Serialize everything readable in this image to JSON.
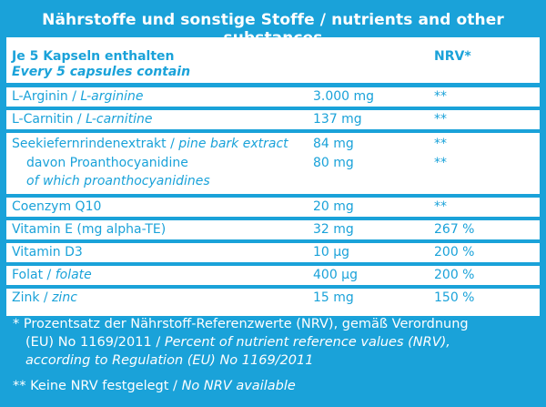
{
  "title": "Nährstoffe und sonstige Stoffe / nutrients and other substances",
  "colors": {
    "accent": "#1aa2d9",
    "panel": "#ffffff"
  },
  "header": {
    "line1": "Je 5 Kapseln enthalten",
    "line2": "Every 5 capsules contain",
    "nrv": "NRV*"
  },
  "rows": [
    {
      "name_de": "L-Arginin / ",
      "name_en": "L-arginine",
      "amount": "3.000 mg",
      "nrv": "**"
    },
    {
      "name_de": "L-Carnitin / ",
      "name_en": "L-carnitine",
      "amount": "137 mg",
      "nrv": "**"
    },
    {
      "name_de": "Seekiefernrindenextrakt / ",
      "name_en": "pine bark extract",
      "amount": "84 mg",
      "nrv": "**",
      "sub_de": "davon Proanthocyanidine",
      "sub_en": "of which proanthocyanidines",
      "sub_amount": "80 mg",
      "sub_nrv": "**"
    },
    {
      "name_de": "Coenzym Q10",
      "name_en": "",
      "amount": "20 mg",
      "nrv": "**"
    },
    {
      "name_de": "Vitamin E (mg alpha-TE)",
      "name_en": "",
      "amount": "32 mg",
      "nrv": "267 %"
    },
    {
      "name_de": "Vitamin D3",
      "name_en": "",
      "amount": "10 µg",
      "nrv": "200 %"
    },
    {
      "name_de": "Folat / ",
      "name_en": "folate",
      "amount": "400 µg",
      "nrv": "200 %"
    },
    {
      "name_de": "Zink / ",
      "name_en": "zinc",
      "amount": "15 mg",
      "nrv": "150 %"
    }
  ],
  "footnotes": {
    "f1_de": "* Prozentsatz der Nährstoff-Referenzwerte (NRV), gemäß Verordnung",
    "f1_de2": "(EU) No 1169/2011 / ",
    "f1_en": "Percent of nutrient reference values (NRV),",
    "f1_en2": "according to Regulation (EU) No 1169/2011",
    "f2_de": "** Keine NRV festgelegt / ",
    "f2_en": "No NRV available"
  }
}
